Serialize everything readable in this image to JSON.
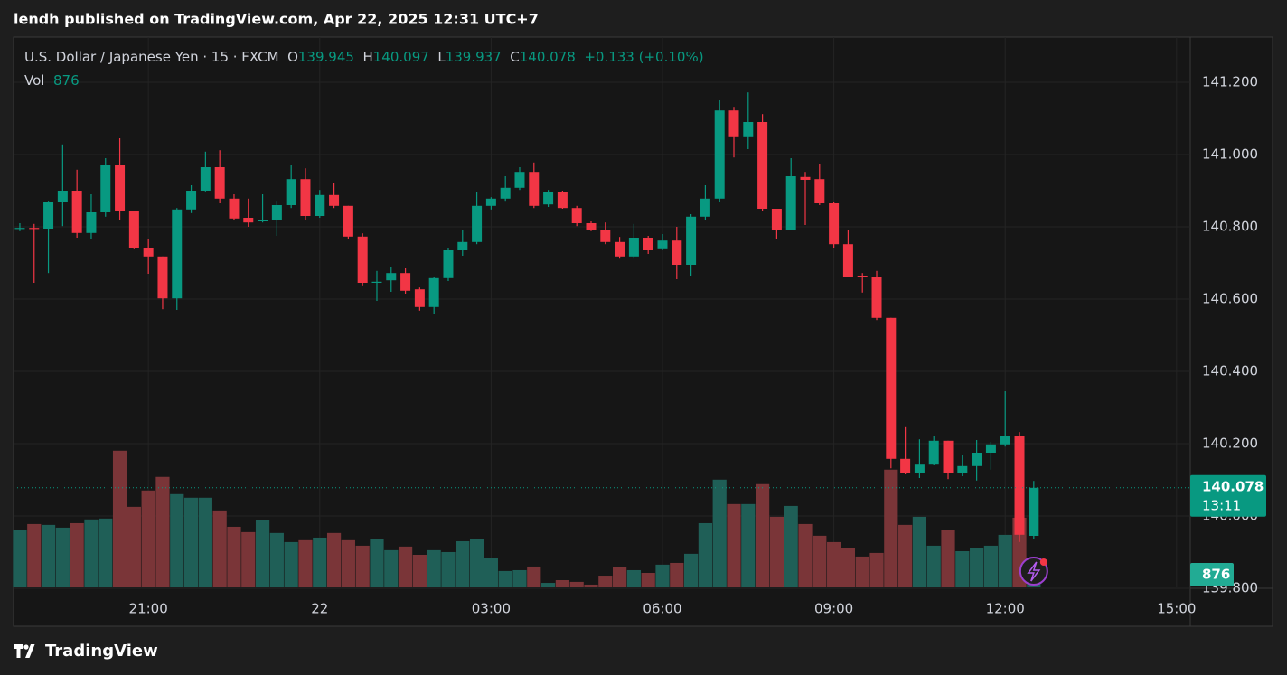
{
  "header": {
    "published": "lendh published on TradingView.com, Apr 22, 2025 12:31 UTC+7"
  },
  "footer": {
    "brand": "TradingView"
  },
  "chart_data": {
    "type": "candlestick",
    "title": "U.S. Dollar / Japanese Yen · 15 · FXCM",
    "legend_labels": [
      "O",
      "H",
      "L",
      "C"
    ],
    "change": {
      "value": 0.133,
      "label": "+0.133"
    },
    "change_pct": {
      "value": 0.1,
      "label": "(+0.10%)"
    },
    "volume_label": "Vol",
    "countdown": "13:11",
    "up_color": "#089981",
    "down_color": "#f23645",
    "up_volume_color": "#1f5f57",
    "down_volume_color": "#7a3538",
    "grid": true,
    "xlim": [
      -0.44,
      81.96
    ],
    "xticks": [
      {
        "value": 9,
        "label": "21:00"
      },
      {
        "value": 21,
        "label": "22"
      },
      {
        "value": 33,
        "label": "03:00"
      },
      {
        "value": 45,
        "label": "06:00"
      },
      {
        "value": 57,
        "label": "09:00"
      },
      {
        "value": 69,
        "label": "12:00"
      },
      {
        "value": 81,
        "label": "15:00"
      }
    ],
    "ylim": [
      139.8025,
      141.325
    ],
    "yticks": [
      {
        "value": 139.8,
        "label": "139.800"
      },
      {
        "value": 140.0,
        "label": "140.000"
      },
      {
        "value": 140.2,
        "label": "140.200"
      },
      {
        "value": 140.4,
        "label": "140.400"
      },
      {
        "value": 140.6,
        "label": "140.600"
      },
      {
        "value": 140.8,
        "label": "140.800"
      },
      {
        "value": 141.0,
        "label": "141.000"
      },
      {
        "value": 141.2,
        "label": "141.200"
      }
    ],
    "open": [
      140.795,
      140.797,
      140.795,
      140.868,
      140.9,
      140.783,
      140.84,
      140.97,
      140.845,
      140.742,
      140.718,
      140.602,
      140.848,
      140.9,
      140.965,
      140.878,
      140.825,
      140.815,
      140.818,
      140.86,
      140.932,
      140.83,
      140.888,
      140.858,
      140.773,
      140.645,
      140.652,
      140.672,
      140.627,
      140.578,
      140.658,
      140.735,
      140.758,
      140.858,
      140.878,
      140.908,
      140.952,
      140.862,
      140.895,
      140.852,
      140.81,
      140.792,
      140.758,
      140.718,
      140.77,
      140.738,
      140.762,
      140.695,
      140.828,
      140.878,
      141.122,
      141.048,
      141.09,
      140.85,
      140.792,
      140.938,
      140.932,
      140.865,
      140.752,
      140.665,
      140.66,
      140.548,
      140.158,
      140.12,
      140.142,
      140.208,
      140.12,
      140.138,
      140.175,
      140.198,
      140.22,
      139.945
    ],
    "high": [
      140.81,
      140.808,
      140.872,
      141.028,
      140.958,
      140.89,
      140.99,
      141.045,
      140.845,
      140.765,
      140.718,
      140.852,
      140.915,
      141.008,
      141.012,
      140.89,
      140.878,
      140.89,
      140.872,
      140.97,
      140.962,
      140.902,
      140.922,
      140.858,
      140.782,
      140.678,
      140.69,
      140.685,
      140.632,
      140.662,
      140.74,
      140.79,
      140.895,
      140.882,
      140.94,
      140.965,
      140.978,
      140.902,
      140.9,
      140.858,
      140.815,
      140.812,
      140.772,
      140.808,
      140.775,
      140.78,
      140.8,
      140.835,
      140.915,
      141.15,
      141.132,
      141.172,
      141.112,
      140.85,
      140.99,
      140.952,
      140.975,
      140.868,
      140.79,
      140.672,
      140.678,
      140.548,
      140.248,
      140.212,
      140.222,
      140.208,
      140.168,
      140.21,
      140.205,
      140.345,
      140.232,
      140.097
    ],
    "low": [
      140.788,
      140.645,
      140.672,
      140.802,
      140.77,
      140.765,
      140.828,
      140.82,
      140.738,
      140.67,
      140.572,
      140.57,
      140.838,
      140.898,
      140.865,
      140.82,
      140.8,
      140.812,
      140.775,
      140.852,
      140.82,
      140.825,
      140.852,
      140.765,
      140.638,
      140.595,
      140.62,
      140.615,
      140.568,
      140.558,
      140.65,
      140.72,
      140.752,
      140.848,
      140.872,
      140.902,
      140.852,
      140.855,
      140.85,
      140.802,
      140.788,
      140.752,
      140.712,
      140.712,
      140.725,
      140.735,
      140.655,
      140.665,
      140.82,
      140.868,
      140.992,
      141.015,
      140.845,
      140.765,
      140.79,
      140.805,
      140.86,
      140.74,
      140.66,
      140.618,
      140.542,
      140.132,
      140.115,
      140.105,
      140.14,
      140.102,
      140.11,
      140.098,
      140.128,
      140.192,
      139.928,
      139.937
    ],
    "close": [
      140.797,
      140.795,
      140.868,
      140.9,
      140.783,
      140.84,
      140.97,
      140.845,
      140.742,
      140.718,
      140.602,
      140.848,
      140.9,
      140.965,
      140.878,
      140.823,
      140.812,
      140.818,
      140.86,
      140.932,
      140.83,
      140.888,
      140.858,
      140.773,
      140.645,
      140.648,
      140.672,
      140.623,
      140.578,
      140.658,
      140.735,
      140.758,
      140.858,
      140.878,
      140.908,
      140.952,
      140.858,
      140.895,
      140.852,
      140.81,
      140.792,
      140.758,
      140.718,
      140.77,
      140.735,
      140.762,
      140.695,
      140.828,
      140.878,
      141.122,
      141.048,
      141.09,
      140.85,
      140.792,
      140.94,
      140.93,
      140.865,
      140.752,
      140.662,
      140.662,
      140.548,
      140.158,
      140.12,
      140.142,
      140.208,
      140.12,
      140.138,
      140.175,
      140.198,
      140.22,
      139.948,
      140.078
    ],
    "volume": [
      3940,
      4380,
      4320,
      4130,
      4440,
      4700,
      4760,
      9450,
      5570,
      6700,
      7640,
      6450,
      6200,
      6200,
      5320,
      4190,
      3820,
      4630,
      3760,
      3130,
      3260,
      3440,
      3760,
      3260,
      2880,
      3320,
      2570,
      2820,
      2250,
      2570,
      2440,
      3190,
      3320,
      2000,
      1130,
      1190,
      1440,
      310,
      500,
      380,
      190,
      810,
      1380,
      1190,
      1000,
      1570,
      1690,
      2320,
      4440,
      7450,
      5760,
      5760,
      7140,
      4880,
      5630,
      4380,
      3570,
      3130,
      2690,
      2130,
      2380,
      8140,
      4320,
      4880,
      2880,
      3940,
      2500,
      2750,
      2880,
      3630,
      4820,
      876
    ]
  }
}
